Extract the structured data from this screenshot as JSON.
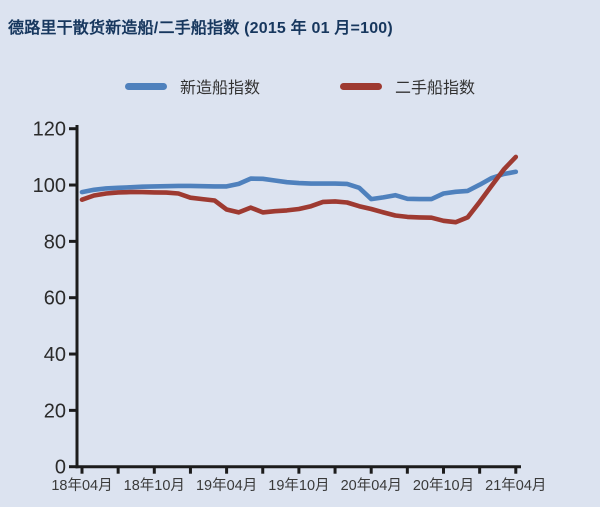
{
  "header": {
    "title": "德路里干散货新造船/二手船指数  (2015 年 01 月=100)"
  },
  "legend": {
    "items": [
      {
        "label": "新造船指数",
        "color": "#4f81bd"
      },
      {
        "label": "二手船指数",
        "color": "#9e3a31"
      }
    ]
  },
  "chart_data": {
    "type": "line",
    "title": "德路里干散货新造船/二手船指数 (2015 年 01 月=100)",
    "x_interval": "monthly",
    "x_start": "2018-04",
    "x_end": "2021-04",
    "x_tick_labels": [
      "18年04月",
      "18年10月",
      "19年04月",
      "19年10月",
      "20年04月",
      "20年10月",
      "21年04月"
    ],
    "y_ticks": [
      0,
      20,
      40,
      60,
      80,
      100,
      120
    ],
    "ylim": [
      0,
      120
    ],
    "grid": false,
    "legend_position": "top",
    "background_color": "#dce3f0",
    "axis_color": "#1c1c1c",
    "series": [
      {
        "name": "新造船指数",
        "color": "#4f81bd",
        "values": [
          97.5,
          98.3,
          98.8,
          99.0,
          99.2,
          99.4,
          99.5,
          99.6,
          99.7,
          99.7,
          99.6,
          99.5,
          99.5,
          100.4,
          102.3,
          102.2,
          101.6,
          101.0,
          100.7,
          100.5,
          100.5,
          100.5,
          100.4,
          99.0,
          95.0,
          95.6,
          96.4,
          95.1,
          95.0,
          95.0,
          97.0,
          97.6,
          97.9,
          100.1,
          102.5,
          103.9,
          104.7
        ]
      },
      {
        "name": "二手船指数",
        "color": "#9e3a31",
        "values": [
          94.8,
          96.3,
          97.0,
          97.4,
          97.5,
          97.5,
          97.4,
          97.3,
          97.0,
          95.5,
          95.0,
          94.5,
          91.3,
          90.3,
          92.0,
          90.3,
          90.7,
          91.0,
          91.5,
          92.5,
          94.0,
          94.2,
          93.8,
          92.5,
          91.5,
          90.3,
          89.2,
          88.7,
          88.5,
          88.4,
          87.3,
          86.8,
          88.5,
          94.0,
          99.8,
          105.5,
          110.0
        ]
      }
    ]
  }
}
